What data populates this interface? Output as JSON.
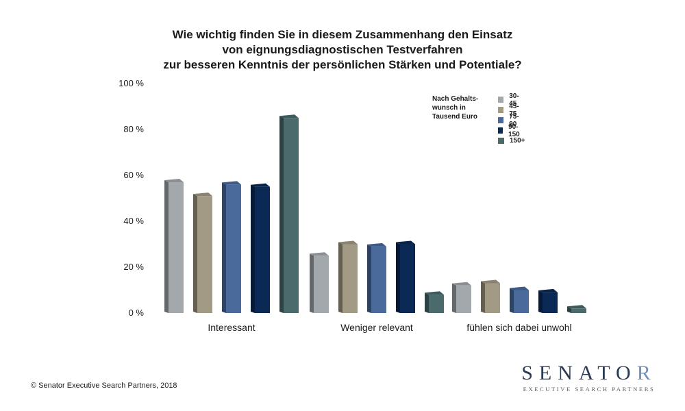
{
  "chart_data": {
    "type": "bar",
    "title_lines": [
      "Wie wichtig finden Sie in diesem Zusammenhang den Einsatz",
      "von eignungsdiagnostischen Testverfahren",
      "zur besseren Kenntnis der persönlichen Stärken und Potentiale?"
    ],
    "categories": [
      "Interessant",
      "Weniger relevant",
      "fühlen sich dabei unwohl"
    ],
    "series": [
      {
        "name": "30-45",
        "color": "#a3a8ad",
        "values": [
          57,
          25,
          12
        ]
      },
      {
        "name": "45-75",
        "color": "#a39a85",
        "values": [
          51,
          30,
          13
        ]
      },
      {
        "name": "75-90",
        "color": "#4a6a9c",
        "values": [
          56,
          29,
          10
        ]
      },
      {
        "name": "90-150",
        "color": "#0a2a55",
        "values": [
          55,
          30,
          9
        ]
      },
      {
        "name": "150+",
        "color": "#4a6a6c",
        "values": [
          85,
          8,
          2
        ]
      }
    ],
    "ylim": [
      0,
      100
    ],
    "yticks": [
      "0 %",
      "20 %",
      "40 %",
      "60 %",
      "80 %",
      "100 %"
    ],
    "legend_title_lines": [
      "Nach Gehalts-",
      "wunsch in",
      "Tausend Euro"
    ],
    "legend_position": "top-right",
    "grid": false
  },
  "footer": "© Senator Executive Search Partners, 2018",
  "logo": {
    "main": "SENATO",
    "accent": "R",
    "sub": "EXECUTIVE SEARCH PARTNERS"
  }
}
